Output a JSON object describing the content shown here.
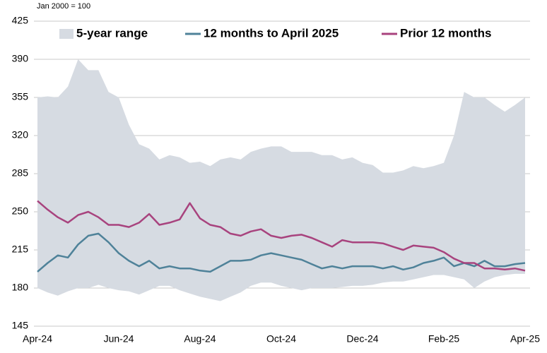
{
  "chart_data": {
    "type": "line",
    "y_axis_label": "Jan 2000 = 100",
    "categories": [
      "Apr-24",
      null,
      null,
      null,
      null,
      null,
      null,
      null,
      "Jun-24",
      null,
      null,
      null,
      null,
      null,
      null,
      null,
      "Aug-24",
      null,
      null,
      null,
      null,
      null,
      null,
      null,
      "Oct-24",
      null,
      null,
      null,
      null,
      null,
      null,
      null,
      "Dec-24",
      null,
      null,
      null,
      null,
      null,
      null,
      null,
      "Feb-25",
      null,
      null,
      null,
      null,
      null,
      null,
      null,
      "Apr-25"
    ],
    "series": [
      {
        "name": "5-year range",
        "color": "#d6dbe2",
        "kind": "range",
        "high": [
          355,
          356,
          355,
          365,
          390,
          380,
          380,
          360,
          355,
          330,
          312,
          308,
          298,
          302,
          300,
          295,
          296,
          292,
          298,
          300,
          298,
          305,
          308,
          310,
          310,
          305,
          305,
          305,
          302,
          302,
          298,
          300,
          295,
          293,
          286,
          286,
          288,
          292,
          290,
          292,
          295,
          320,
          360,
          355,
          355,
          348,
          342,
          348,
          355
        ],
        "low": [
          180,
          176,
          173,
          177,
          180,
          180,
          183,
          180,
          178,
          177,
          174,
          178,
          182,
          182,
          178,
          175,
          172,
          170,
          168,
          172,
          176,
          182,
          185,
          185,
          182,
          180,
          178,
          180,
          180,
          180,
          181,
          182,
          182,
          183,
          185,
          186,
          186,
          188,
          190,
          192,
          192,
          190,
          188,
          180,
          186,
          190,
          192,
          193,
          193
        ]
      },
      {
        "name": "12 months to April 2025",
        "color": "#4f8299",
        "kind": "line",
        "values": [
          195,
          203,
          210,
          208,
          220,
          228,
          230,
          222,
          212,
          205,
          200,
          205,
          198,
          200,
          198,
          198,
          196,
          195,
          200,
          205,
          205,
          206,
          210,
          212,
          210,
          208,
          206,
          202,
          198,
          200,
          198,
          200,
          200,
          200,
          198,
          200,
          197,
          199,
          203,
          205,
          208,
          200,
          203,
          200,
          205,
          200,
          200,
          202,
          203
        ]
      },
      {
        "name": "Prior 12 months",
        "color": "#a8437e",
        "kind": "line",
        "values": [
          260,
          252,
          245,
          240,
          247,
          250,
          245,
          238,
          238,
          236,
          240,
          248,
          238,
          240,
          243,
          258,
          244,
          238,
          236,
          230,
          228,
          232,
          234,
          228,
          226,
          228,
          229,
          226,
          222,
          218,
          224,
          222,
          222,
          222,
          221,
          218,
          215,
          219,
          218,
          217,
          213,
          207,
          203,
          203,
          198,
          198,
          197,
          198,
          196
        ]
      }
    ],
    "ylim": [
      145,
      425
    ],
    "yticks": [
      145,
      180,
      215,
      250,
      285,
      320,
      355,
      390,
      425
    ],
    "grid": true,
    "legend": "top"
  }
}
